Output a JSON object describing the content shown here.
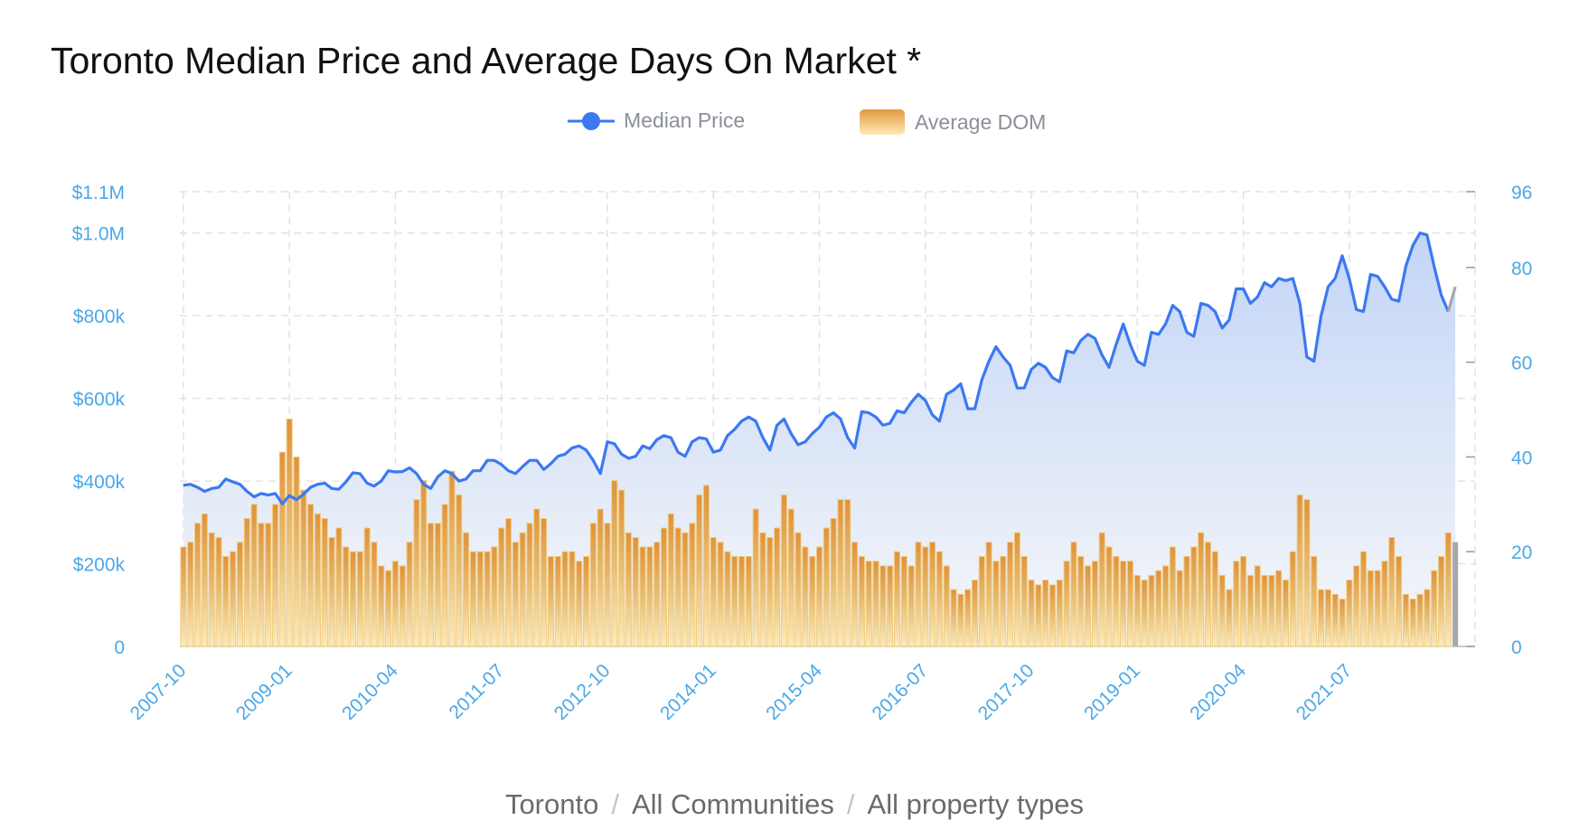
{
  "chart_data": {
    "type": "line+bar",
    "title": "Toronto Median Price and Average Days On Market *",
    "legend": {
      "position": "top-center",
      "items": [
        {
          "name": "Median Price",
          "type": "line",
          "color": "#3b78f2"
        },
        {
          "name": "Average DOM",
          "type": "bar",
          "color": "#e49a3e"
        }
      ]
    },
    "x_tick_labels": [
      "2007-10",
      "2009-01",
      "2010-04",
      "2011-07",
      "2012-10",
      "2014-01",
      "2015-04",
      "2016-07",
      "2017-10",
      "2019-01",
      "2020-04",
      "2021-07"
    ],
    "categories": [
      "2007-10",
      "2007-11",
      "2007-12",
      "2008-01",
      "2008-02",
      "2008-03",
      "2008-04",
      "2008-05",
      "2008-06",
      "2008-07",
      "2008-08",
      "2008-09",
      "2008-10",
      "2008-11",
      "2008-12",
      "2009-01",
      "2009-02",
      "2009-03",
      "2009-04",
      "2009-05",
      "2009-06",
      "2009-07",
      "2009-08",
      "2009-09",
      "2009-10",
      "2009-11",
      "2009-12",
      "2010-01",
      "2010-02",
      "2010-03",
      "2010-04",
      "2010-05",
      "2010-06",
      "2010-07",
      "2010-08",
      "2010-09",
      "2010-10",
      "2010-11",
      "2010-12",
      "2011-01",
      "2011-02",
      "2011-03",
      "2011-04",
      "2011-05",
      "2011-06",
      "2011-07",
      "2011-08",
      "2011-09",
      "2011-10",
      "2011-11",
      "2011-12",
      "2012-01",
      "2012-02",
      "2012-03",
      "2012-04",
      "2012-05",
      "2012-06",
      "2012-07",
      "2012-08",
      "2012-09",
      "2012-10",
      "2012-11",
      "2012-12",
      "2013-01",
      "2013-02",
      "2013-03",
      "2013-04",
      "2013-05",
      "2013-06",
      "2013-07",
      "2013-08",
      "2013-09",
      "2013-10",
      "2013-11",
      "2013-12",
      "2014-01",
      "2014-02",
      "2014-03",
      "2014-04",
      "2014-05",
      "2014-06",
      "2014-07",
      "2014-08",
      "2014-09",
      "2014-10",
      "2014-11",
      "2014-12",
      "2015-01",
      "2015-02",
      "2015-03",
      "2015-04",
      "2015-05",
      "2015-06",
      "2015-07",
      "2015-08",
      "2015-09",
      "2015-10",
      "2015-11",
      "2015-12",
      "2016-01",
      "2016-02",
      "2016-03",
      "2016-04",
      "2016-05",
      "2016-06",
      "2016-07",
      "2016-08",
      "2016-09",
      "2016-10",
      "2016-11",
      "2016-12",
      "2017-01",
      "2017-02",
      "2017-03",
      "2017-04",
      "2017-05",
      "2017-06",
      "2017-07",
      "2017-08",
      "2017-09",
      "2017-10",
      "2017-11",
      "2017-12",
      "2018-01",
      "2018-02",
      "2018-03",
      "2018-04",
      "2018-05",
      "2018-06",
      "2018-07",
      "2018-08",
      "2018-09",
      "2018-10",
      "2018-11",
      "2018-12",
      "2019-01",
      "2019-02",
      "2019-03",
      "2019-04",
      "2019-05",
      "2019-06",
      "2019-07",
      "2019-08",
      "2019-09",
      "2019-10",
      "2019-11",
      "2019-12",
      "2020-01",
      "2020-02",
      "2020-03",
      "2020-04",
      "2020-05",
      "2020-06",
      "2020-07",
      "2020-08",
      "2020-09",
      "2020-10",
      "2020-11",
      "2020-12",
      "2021-01",
      "2021-02",
      "2021-03",
      "2021-04",
      "2021-05",
      "2021-06",
      "2021-07",
      "2021-08",
      "2021-09",
      "2021-10",
      "2021-11",
      "2021-12",
      "2022-01",
      "2022-02",
      "2022-03",
      "2022-04",
      "2022-05",
      "2022-06",
      "2022-07",
      "2022-08",
      "2022-09",
      "2022-10"
    ],
    "series": [
      {
        "name": "Median Price",
        "axis": "left",
        "type": "line",
        "values": [
          390000,
          392000,
          385000,
          375000,
          382000,
          385000,
          405000,
          398000,
          392000,
          375000,
          362000,
          370000,
          366000,
          370000,
          345000,
          365000,
          355000,
          368000,
          385000,
          392000,
          395000,
          382000,
          380000,
          398000,
          420000,
          418000,
          395000,
          388000,
          400000,
          425000,
          422000,
          423000,
          432000,
          418000,
          392000,
          382000,
          410000,
          425000,
          418000,
          400000,
          405000,
          425000,
          425000,
          450000,
          450000,
          440000,
          425000,
          418000,
          435000,
          450000,
          450000,
          428000,
          442000,
          460000,
          465000,
          480000,
          485000,
          475000,
          450000,
          418000,
          495000,
          490000,
          465000,
          455000,
          460000,
          485000,
          478000,
          500000,
          510000,
          505000,
          470000,
          460000,
          495000,
          505000,
          502000,
          470000,
          475000,
          510000,
          525000,
          545000,
          555000,
          545000,
          505000,
          475000,
          535000,
          550000,
          515000,
          488000,
          495000,
          515000,
          530000,
          555000,
          565000,
          550000,
          505000,
          480000,
          568000,
          565000,
          555000,
          535000,
          540000,
          570000,
          565000,
          590000,
          610000,
          595000,
          560000,
          545000,
          610000,
          620000,
          635000,
          575000,
          575000,
          645000,
          690000,
          725000,
          700000,
          680000,
          625000,
          625000,
          670000,
          685000,
          675000,
          650000,
          640000,
          715000,
          710000,
          740000,
          755000,
          745000,
          705000,
          675000,
          730000,
          780000,
          730000,
          690000,
          680000,
          760000,
          755000,
          780000,
          825000,
          810000,
          760000,
          750000,
          830000,
          825000,
          810000,
          770000,
          790000,
          865000,
          865000,
          830000,
          845000,
          880000,
          870000,
          890000,
          885000,
          890000,
          830000,
          700000,
          690000,
          800000,
          870000,
          890000,
          945000,
          890000,
          815000,
          810000,
          900000,
          895000,
          870000,
          840000,
          835000,
          920000,
          970000,
          1000000,
          995000,
          920000,
          850000,
          810000,
          870000
        ]
      },
      {
        "name": "Average DOM",
        "axis": "right",
        "type": "bar",
        "values": [
          21,
          22,
          26,
          28,
          24,
          23,
          19,
          20,
          22,
          27,
          30,
          26,
          26,
          30,
          41,
          48,
          40,
          33,
          30,
          28,
          27,
          23,
          25,
          21,
          20,
          20,
          25,
          22,
          17,
          16,
          18,
          17,
          22,
          31,
          35,
          26,
          26,
          30,
          37,
          32,
          24,
          20,
          20,
          20,
          21,
          25,
          27,
          22,
          24,
          26,
          29,
          27,
          19,
          19,
          20,
          20,
          18,
          19,
          26,
          29,
          26,
          35,
          33,
          24,
          23,
          21,
          21,
          22,
          25,
          28,
          25,
          24,
          26,
          32,
          34,
          23,
          22,
          20,
          19,
          19,
          19,
          29,
          24,
          23,
          25,
          32,
          29,
          24,
          21,
          19,
          21,
          25,
          27,
          31,
          31,
          22,
          19,
          18,
          18,
          17,
          17,
          20,
          19,
          17,
          22,
          21,
          22,
          20,
          17,
          12,
          11,
          12,
          14,
          19,
          22,
          18,
          19,
          22,
          24,
          19,
          14,
          13,
          14,
          13,
          14,
          18,
          22,
          19,
          17,
          18,
          24,
          21,
          19,
          18,
          18,
          15,
          14,
          15,
          16,
          17,
          21,
          16,
          19,
          21,
          24,
          22,
          20,
          15,
          12,
          18,
          19,
          15,
          17,
          15,
          15,
          16,
          14,
          20,
          32,
          31,
          19,
          12,
          12,
          11,
          10,
          14,
          17,
          20,
          16,
          16,
          18,
          23,
          19,
          11,
          10,
          11,
          12,
          16,
          19,
          24,
          22
        ]
      }
    ],
    "y_left": {
      "min": 0,
      "max": 1100000,
      "tick_labels": [
        "0",
        "$200k",
        "$400k",
        "$600k",
        "$800k",
        "$1.0M",
        "$1.1M"
      ],
      "tick_values": [
        0,
        200000,
        400000,
        600000,
        800000,
        1000000,
        1100000
      ]
    },
    "y_right": {
      "min": 0,
      "max": 96,
      "tick_labels": [
        "0",
        "20",
        "40",
        "60",
        "80",
        "96"
      ],
      "tick_values": [
        0,
        20,
        40,
        60,
        80,
        96
      ]
    },
    "grid": true,
    "last_point_partial_color": "#a8a8a8",
    "axis_label_color": "#4aa8e8",
    "area_fill": true
  },
  "footer": {
    "city": "Toronto",
    "community": "All Communities",
    "property_type": "All property types",
    "separator": "/"
  }
}
